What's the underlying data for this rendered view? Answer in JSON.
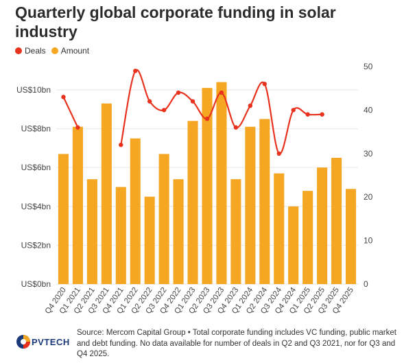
{
  "title": "Quarterly global corporate funding in solar industry",
  "legend": {
    "deals_label": "Deals",
    "amount_label": "Amount",
    "deals_color": "#e8321e",
    "amount_color": "#f5a623"
  },
  "source_note": "Source: Mercom Capital Group • Total corporate funding includes VC funding, public market and debt funding. No data available for number of deals in Q2 and Q3 2021, nor for Q3 and Q4 2025.",
  "logo": {
    "text": "PVTECH"
  },
  "chart_data": {
    "type": "bar",
    "categories": [
      "Q4 2020",
      "Q1 2021",
      "Q2 2021",
      "Q3 2021",
      "Q4 2021",
      "Q1 2022",
      "Q2 2022",
      "Q3 2022",
      "Q4 2022",
      "Q1 2023",
      "Q2 2023",
      "Q3 2023",
      "Q4 2023",
      "Q1 2024",
      "Q2 2024",
      "Q3 2024",
      "Q4 2024",
      "Q1 2025",
      "Q2 2025",
      "Q3 2025",
      "Q4 2025"
    ],
    "series": [
      {
        "name": "Amount",
        "kind": "bar",
        "axis": "left",
        "values": [
          6.7,
          8.1,
          5.4,
          9.3,
          5.0,
          7.5,
          4.5,
          6.7,
          5.4,
          8.4,
          10.1,
          10.4,
          5.4,
          8.1,
          8.5,
          5.7,
          4.0,
          4.8,
          6.0,
          6.5,
          4.9
        ]
      },
      {
        "name": "Deals",
        "kind": "line",
        "axis": "right",
        "values": [
          43,
          36,
          null,
          null,
          32,
          49,
          42,
          40,
          44,
          42,
          38,
          44,
          36,
          41,
          46,
          30,
          40,
          39,
          39,
          null,
          null
        ]
      }
    ],
    "left_axis": {
      "ylim": [
        0,
        11.2
      ],
      "ticks": [
        0,
        2,
        4,
        6,
        8,
        10
      ],
      "tick_labels": [
        "US$0bn",
        "US$2bn",
        "US$4bn",
        "US$6bn",
        "US$8bn",
        "US$10bn"
      ]
    },
    "right_axis": {
      "ylim": [
        0,
        50
      ],
      "ticks": [
        0,
        10,
        20,
        30,
        40,
        50
      ],
      "tick_labels": [
        "0",
        "10",
        "20",
        "30",
        "40",
        "50"
      ]
    },
    "grid": true,
    "legend_position": "top-left"
  }
}
